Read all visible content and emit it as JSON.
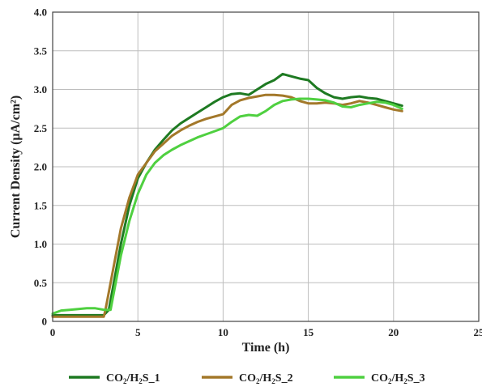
{
  "chart_data": {
    "type": "line",
    "xlabel": "Time (h)",
    "ylabel": "Current Density (µA/cm²)",
    "xlim": [
      0,
      25
    ],
    "ylim": [
      0,
      4.0
    ],
    "xticks": [
      {
        "value": 0,
        "label": "0"
      },
      {
        "value": 5,
        "label": "5"
      },
      {
        "value": 10,
        "label": "10"
      },
      {
        "value": 15,
        "label": "15"
      },
      {
        "value": 20,
        "label": "20"
      },
      {
        "value": 25,
        "label": "25"
      }
    ],
    "yticks": [
      {
        "value": 0,
        "label": "0"
      },
      {
        "value": 0.5,
        "label": "0.5"
      },
      {
        "value": 1.0,
        "label": "1.0"
      },
      {
        "value": 1.5,
        "label": "1.5"
      },
      {
        "value": 2.0,
        "label": "2.0"
      },
      {
        "value": 2.5,
        "label": "2.5"
      },
      {
        "value": 3.0,
        "label": "3.0"
      },
      {
        "value": 3.5,
        "label": "3.5"
      },
      {
        "value": 4.0,
        "label": "4.0"
      }
    ],
    "grid": true,
    "legend": "bottom",
    "series": [
      {
        "name": "CO2/H2S_1",
        "name_parts": [
          "CO",
          "2",
          "/H",
          "2",
          "S_1"
        ],
        "color": "#1e7a22",
        "x": [
          0,
          1,
          2,
          3,
          3.3,
          4,
          4.5,
          5,
          5.5,
          6,
          6.5,
          7,
          7.5,
          8,
          8.5,
          9,
          9.5,
          10,
          10.5,
          11,
          11.5,
          12,
          12.5,
          13,
          13.5,
          14,
          14.5,
          15,
          15.5,
          16,
          16.5,
          17,
          17.5,
          18,
          18.5,
          19,
          19.5,
          20,
          20.5
        ],
        "y": [
          0.08,
          0.08,
          0.08,
          0.08,
          0.15,
          1.0,
          1.5,
          1.85,
          2.05,
          2.22,
          2.35,
          2.47,
          2.56,
          2.63,
          2.7,
          2.77,
          2.84,
          2.9,
          2.94,
          2.95,
          2.93,
          3.0,
          3.07,
          3.12,
          3.2,
          3.17,
          3.14,
          3.12,
          3.02,
          2.95,
          2.9,
          2.88,
          2.9,
          2.91,
          2.89,
          2.88,
          2.85,
          2.82,
          2.79
        ]
      },
      {
        "name": "CO2/H2S_2",
        "name_parts": [
          "CO",
          "2",
          "/H",
          "2",
          "S_2"
        ],
        "color": "#a3782a",
        "x": [
          0,
          1,
          2,
          3,
          3.1,
          4,
          4.5,
          5,
          5.5,
          6,
          6.5,
          7,
          7.5,
          8,
          8.5,
          9,
          9.5,
          10,
          10.5,
          11,
          11.5,
          12,
          12.5,
          13,
          13.5,
          14,
          14.5,
          15,
          15.5,
          16,
          16.5,
          17,
          17.5,
          18,
          18.5,
          19,
          19.5,
          20,
          20.5
        ],
        "y": [
          0.06,
          0.06,
          0.06,
          0.06,
          0.15,
          1.2,
          1.6,
          1.9,
          2.05,
          2.2,
          2.3,
          2.4,
          2.47,
          2.53,
          2.58,
          2.62,
          2.65,
          2.68,
          2.8,
          2.86,
          2.89,
          2.91,
          2.93,
          2.93,
          2.92,
          2.9,
          2.85,
          2.82,
          2.82,
          2.83,
          2.82,
          2.8,
          2.82,
          2.85,
          2.83,
          2.8,
          2.77,
          2.74,
          2.72
        ]
      },
      {
        "name": "CO2/H2S_3",
        "name_parts": [
          "CO",
          "2",
          "/H",
          "2",
          "S_3"
        ],
        "color": "#4fd040",
        "x": [
          0,
          0.5,
          1,
          1.5,
          2,
          2.5,
          3,
          3.4,
          4,
          4.5,
          5,
          5.5,
          6,
          6.5,
          7,
          7.5,
          8,
          8.5,
          9,
          9.5,
          10,
          10.5,
          11,
          11.5,
          12,
          12.5,
          13,
          13.5,
          14,
          14.5,
          15,
          15.5,
          16,
          16.5,
          17,
          17.5,
          18,
          18.5,
          19,
          19.5,
          20,
          20.5
        ],
        "y": [
          0.1,
          0.14,
          0.15,
          0.16,
          0.17,
          0.17,
          0.15,
          0.15,
          0.85,
          1.3,
          1.65,
          1.9,
          2.05,
          2.15,
          2.22,
          2.28,
          2.33,
          2.38,
          2.42,
          2.46,
          2.5,
          2.58,
          2.65,
          2.67,
          2.66,
          2.72,
          2.8,
          2.85,
          2.87,
          2.88,
          2.88,
          2.87,
          2.86,
          2.83,
          2.78,
          2.77,
          2.8,
          2.82,
          2.84,
          2.83,
          2.8,
          2.75
        ]
      }
    ]
  }
}
